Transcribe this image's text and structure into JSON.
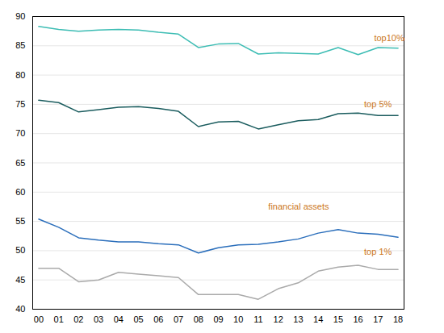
{
  "chart_data": {
    "type": "line",
    "x": [
      0,
      1,
      2,
      3,
      4,
      5,
      6,
      7,
      8,
      9,
      10,
      11,
      12,
      13,
      14,
      15,
      16,
      17,
      18
    ],
    "xlim": [
      -0.3,
      18.3
    ],
    "xticks": [
      {
        "value": 0,
        "label": "00"
      },
      {
        "value": 1,
        "label": "01"
      },
      {
        "value": 2,
        "label": "02"
      },
      {
        "value": 3,
        "label": "03"
      },
      {
        "value": 4,
        "label": "04"
      },
      {
        "value": 5,
        "label": "05"
      },
      {
        "value": 6,
        "label": "06"
      },
      {
        "value": 7,
        "label": "07"
      },
      {
        "value": 8,
        "label": "08"
      },
      {
        "value": 9,
        "label": "09"
      },
      {
        "value": 10,
        "label": "10"
      },
      {
        "value": 11,
        "label": "11"
      },
      {
        "value": 12,
        "label": "12"
      },
      {
        "value": 13,
        "label": "13"
      },
      {
        "value": 14,
        "label": "14"
      },
      {
        "value": 15,
        "label": "15"
      },
      {
        "value": 16,
        "label": "16"
      },
      {
        "value": 17,
        "label": "17"
      },
      {
        "value": 18,
        "label": "18"
      }
    ],
    "ylim": [
      40,
      90
    ],
    "yticks": [
      40,
      45,
      50,
      55,
      60,
      65,
      70,
      75,
      80,
      85,
      90
    ],
    "grid": true,
    "series": [
      {
        "color": "#3dbdb4",
        "values": [
          88.3,
          87.8,
          87.5,
          87.7,
          87.8,
          87.7,
          87.3,
          87.0,
          84.7,
          85.3,
          85.4,
          83.6,
          83.8,
          83.7,
          83.6,
          84.7,
          83.5,
          84.7,
          84.6
        ]
      },
      {
        "color": "#1a5c5e",
        "values": [
          75.7,
          75.3,
          73.7,
          74.1,
          74.5,
          74.6,
          74.3,
          73.8,
          71.2,
          72.0,
          72.1,
          70.8,
          71.5,
          72.2,
          72.4,
          73.4,
          73.5,
          73.1,
          73.1
        ]
      },
      {
        "color": "#2a6ebb",
        "values": [
          55.4,
          54.0,
          52.2,
          51.8,
          51.5,
          51.5,
          51.2,
          51.0,
          49.6,
          50.5,
          51.0,
          51.1,
          51.5,
          52.0,
          53.0,
          53.6,
          53.0,
          52.8,
          52.3
        ]
      },
      {
        "color": "#aaaaaa",
        "values": [
          47.0,
          47.0,
          44.7,
          45.0,
          46.3,
          46.0,
          45.7,
          45.4,
          42.5,
          42.5,
          42.5,
          41.7,
          43.5,
          44.5,
          46.5,
          47.2,
          47.5,
          46.8,
          46.8
        ]
      }
    ],
    "annotations": [
      {
        "text": "top10%",
        "x": 16.8,
        "y": 86.3,
        "color": "#cc7722"
      },
      {
        "text": "top 5%",
        "x": 16.3,
        "y": 75.0,
        "color": "#cc7722"
      },
      {
        "text": "financial assets",
        "x": 11.5,
        "y": 57.5,
        "color": "#cc7722"
      },
      {
        "text": "top 1%",
        "x": 16.3,
        "y": 49.8,
        "color": "#cc7722"
      }
    ]
  }
}
